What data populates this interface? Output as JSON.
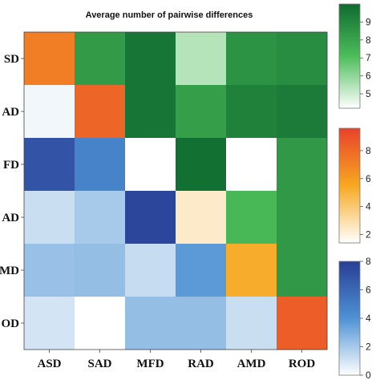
{
  "chart_data": {
    "type": "heatmap",
    "title": "Average number of pairwise differences",
    "x_categories": [
      "ASD",
      "SAD",
      "MFD",
      "RAD",
      "AMD",
      "ROD"
    ],
    "y_categories": [
      "SD",
      "AD",
      "FD",
      "AD",
      "MD",
      "OD"
    ],
    "cells": [
      [
        {
          "scale": "orange",
          "value": 7.2
        },
        {
          "scale": "green",
          "value": 8.3
        },
        {
          "scale": "green",
          "value": 9.6
        },
        {
          "scale": "green",
          "value": 5.4
        },
        {
          "scale": "green",
          "value": 8.6
        },
        {
          "scale": "green",
          "value": 8.8
        }
      ],
      [
        {
          "scale": "blue",
          "value": 0.3
        },
        {
          "scale": "orange",
          "value": 8.2
        },
        {
          "scale": "green",
          "value": 9.6
        },
        {
          "scale": "green",
          "value": 8.2
        },
        {
          "scale": "green",
          "value": 9.2
        },
        {
          "scale": "green",
          "value": 9.4
        }
      ],
      [
        {
          "scale": "blue",
          "value": 7.0
        },
        {
          "scale": "blue",
          "value": 4.7
        },
        {
          "scale": "orange",
          "value": 1.4
        },
        {
          "scale": "green",
          "value": 9.8
        },
        {
          "scale": "orange",
          "value": 1.4
        },
        {
          "scale": "green",
          "value": 8.4
        }
      ],
      [
        {
          "scale": "blue",
          "value": 1.2
        },
        {
          "scale": "blue",
          "value": 2.0
        },
        {
          "scale": "blue",
          "value": 7.6
        },
        {
          "scale": "orange",
          "value": 2.4
        },
        {
          "scale": "green",
          "value": 7.3
        },
        {
          "scale": "green",
          "value": 8.4
        }
      ],
      [
        {
          "scale": "blue",
          "value": 2.3
        },
        {
          "scale": "blue",
          "value": 2.4
        },
        {
          "scale": "blue",
          "value": 1.3
        },
        {
          "scale": "blue",
          "value": 3.7
        },
        {
          "scale": "orange",
          "value": 5.3
        },
        {
          "scale": "green",
          "value": 8.4
        }
      ],
      [
        {
          "scale": "blue",
          "value": 1.0
        },
        {
          "scale": "blue",
          "value": 0.0
        },
        {
          "scale": "blue",
          "value": 2.4
        },
        {
          "scale": "blue",
          "value": 2.4
        },
        {
          "scale": "blue",
          "value": 1.2
        },
        {
          "scale": "orange",
          "value": 8.5
        }
      ]
    ],
    "colorbars": [
      {
        "name": "green",
        "min": 4.2,
        "max": 10.0,
        "ticks": [
          5,
          6,
          7,
          8,
          9
        ],
        "low_color": "#ffffff",
        "mid_color": "#4cbd59",
        "high_color": "#0f6a30"
      },
      {
        "name": "orange",
        "min": 1.4,
        "max": 9.6,
        "ticks": [
          2,
          4,
          6,
          8
        ],
        "low_color": "#ffffff",
        "mid_color": "#f7a821",
        "high_color": "#e8422a"
      },
      {
        "name": "blue",
        "min": 0.0,
        "max": 8.0,
        "ticks": [
          0,
          2,
          4,
          6,
          8
        ],
        "low_color": "#ffffff",
        "mid_color": "#4e92d4",
        "high_color": "#283e96"
      }
    ],
    "grid": false,
    "legend_placement": "right"
  }
}
